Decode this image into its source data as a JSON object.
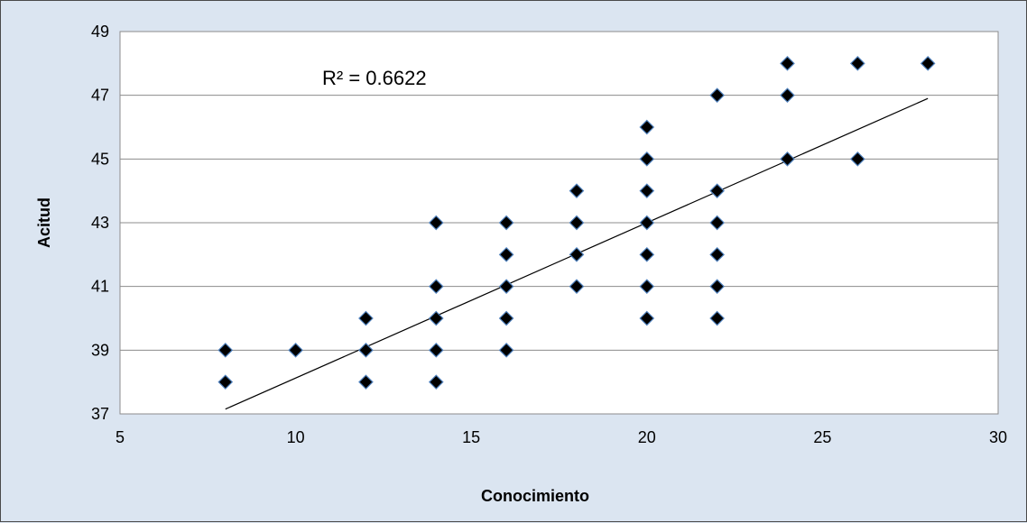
{
  "chart_data": {
    "type": "scatter",
    "title": "",
    "xlabel": "Conocimiento",
    "ylabel": "Acitud",
    "xlim": [
      5,
      30
    ],
    "ylim": [
      37,
      49
    ],
    "xticks": [
      5,
      10,
      15,
      20,
      25,
      30
    ],
    "yticks": [
      37,
      39,
      41,
      43,
      45,
      47,
      49
    ],
    "grid": "horizontal",
    "legend": "none",
    "annotation": "R² = 0.6622",
    "marker": "diamond",
    "colors": {
      "background": "#dbe5f1",
      "plot_area": "#ffffff",
      "marker_fill": "#000000",
      "marker_edge": "#4f81bd",
      "trendline": "#000000",
      "gridline": "#8c8c8c"
    },
    "points": [
      {
        "x": 8,
        "y": 39
      },
      {
        "x": 8,
        "y": 38
      },
      {
        "x": 10,
        "y": 39
      },
      {
        "x": 12,
        "y": 40
      },
      {
        "x": 12,
        "y": 39
      },
      {
        "x": 12,
        "y": 38
      },
      {
        "x": 14,
        "y": 43
      },
      {
        "x": 14,
        "y": 41
      },
      {
        "x": 14,
        "y": 40
      },
      {
        "x": 14,
        "y": 39
      },
      {
        "x": 14,
        "y": 38
      },
      {
        "x": 16,
        "y": 43
      },
      {
        "x": 16,
        "y": 42
      },
      {
        "x": 16,
        "y": 41
      },
      {
        "x": 16,
        "y": 40
      },
      {
        "x": 16,
        "y": 39
      },
      {
        "x": 18,
        "y": 44
      },
      {
        "x": 18,
        "y": 43
      },
      {
        "x": 18,
        "y": 42
      },
      {
        "x": 18,
        "y": 41
      },
      {
        "x": 20,
        "y": 46
      },
      {
        "x": 20,
        "y": 45
      },
      {
        "x": 20,
        "y": 44
      },
      {
        "x": 20,
        "y": 43
      },
      {
        "x": 20,
        "y": 42
      },
      {
        "x": 20,
        "y": 41
      },
      {
        "x": 20,
        "y": 40
      },
      {
        "x": 22,
        "y": 47
      },
      {
        "x": 22,
        "y": 44
      },
      {
        "x": 22,
        "y": 43
      },
      {
        "x": 22,
        "y": 42
      },
      {
        "x": 22,
        "y": 41
      },
      {
        "x": 22,
        "y": 40
      },
      {
        "x": 24,
        "y": 48
      },
      {
        "x": 24,
        "y": 47
      },
      {
        "x": 24,
        "y": 45
      },
      {
        "x": 26,
        "y": 48
      },
      {
        "x": 26,
        "y": 45
      },
      {
        "x": 28,
        "y": 48
      }
    ],
    "trendline": {
      "x": [
        8,
        28
      ],
      "y": [
        37.15,
        46.9
      ]
    }
  }
}
